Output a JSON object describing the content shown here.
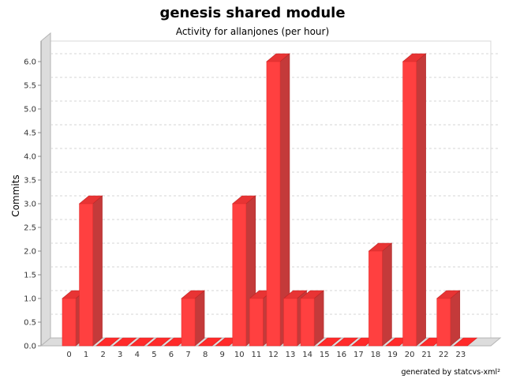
{
  "title": "genesis shared module",
  "subtitle": "Activity for allanjones (per hour)",
  "footer": "generated by statcvs-xml²",
  "chart_data": {
    "type": "bar",
    "title": "genesis shared module",
    "subtitle": "Activity for allanjones (per hour)",
    "xlabel": "",
    "ylabel": "Commits",
    "categories": [
      "0",
      "1",
      "2",
      "3",
      "4",
      "5",
      "6",
      "7",
      "8",
      "9",
      "10",
      "11",
      "12",
      "13",
      "14",
      "15",
      "16",
      "17",
      "18",
      "19",
      "20",
      "21",
      "22",
      "23"
    ],
    "values": [
      1,
      3,
      0,
      0,
      0,
      0,
      0,
      1,
      0,
      0,
      3,
      1,
      6,
      1,
      1,
      0,
      0,
      0,
      2,
      0,
      6,
      0,
      1,
      0
    ],
    "ylim": [
      0,
      6.0
    ],
    "yticks": [
      "0.0",
      "0.5",
      "1.0",
      "1.5",
      "2.0",
      "2.5",
      "3.0",
      "3.5",
      "4.0",
      "4.5",
      "5.0",
      "5.5",
      "6.0"
    ],
    "grid": true,
    "legend": "none",
    "bar_color": "#ff0000",
    "style": "3d"
  }
}
